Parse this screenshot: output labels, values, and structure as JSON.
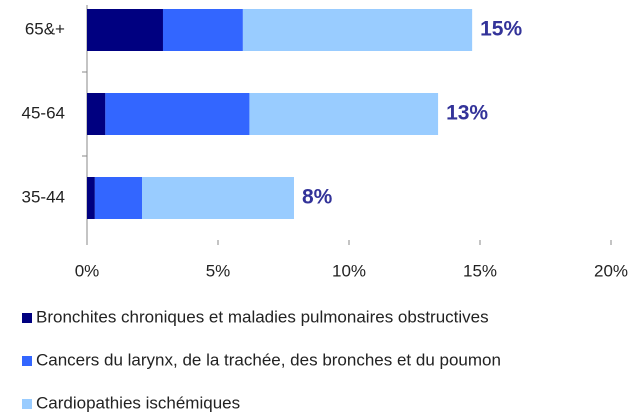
{
  "chart_data": {
    "type": "stacked-barh",
    "categories": [
      "65&+",
      "45-64",
      "35-44"
    ],
    "series": [
      {
        "name": "Bronchites chroniques et maladies pulmonaires obstructives",
        "color": "#000080",
        "values": [
          2.9,
          0.7,
          0.3
        ]
      },
      {
        "name": "Cancers du larynx, de la trachée, des bronches et du poumon",
        "color": "#3366ff",
        "values": [
          3.05,
          5.5,
          1.8
        ]
      },
      {
        "name": "Cardiopathies ischémiques",
        "color": "#99ccff",
        "values": [
          8.75,
          7.2,
          5.8
        ]
      }
    ],
    "totals": [
      14.7,
      13.4,
      7.9
    ],
    "total_labels": [
      "15%",
      "13%",
      "8%"
    ],
    "xlim": [
      0,
      20
    ],
    "xticks": [
      {
        "value": 0,
        "label": "0%"
      },
      {
        "value": 5,
        "label": "5%"
      },
      {
        "value": 10,
        "label": "10%"
      },
      {
        "value": 15,
        "label": "15%"
      },
      {
        "value": 20,
        "label": "20%"
      }
    ],
    "legend": "bottom"
  }
}
